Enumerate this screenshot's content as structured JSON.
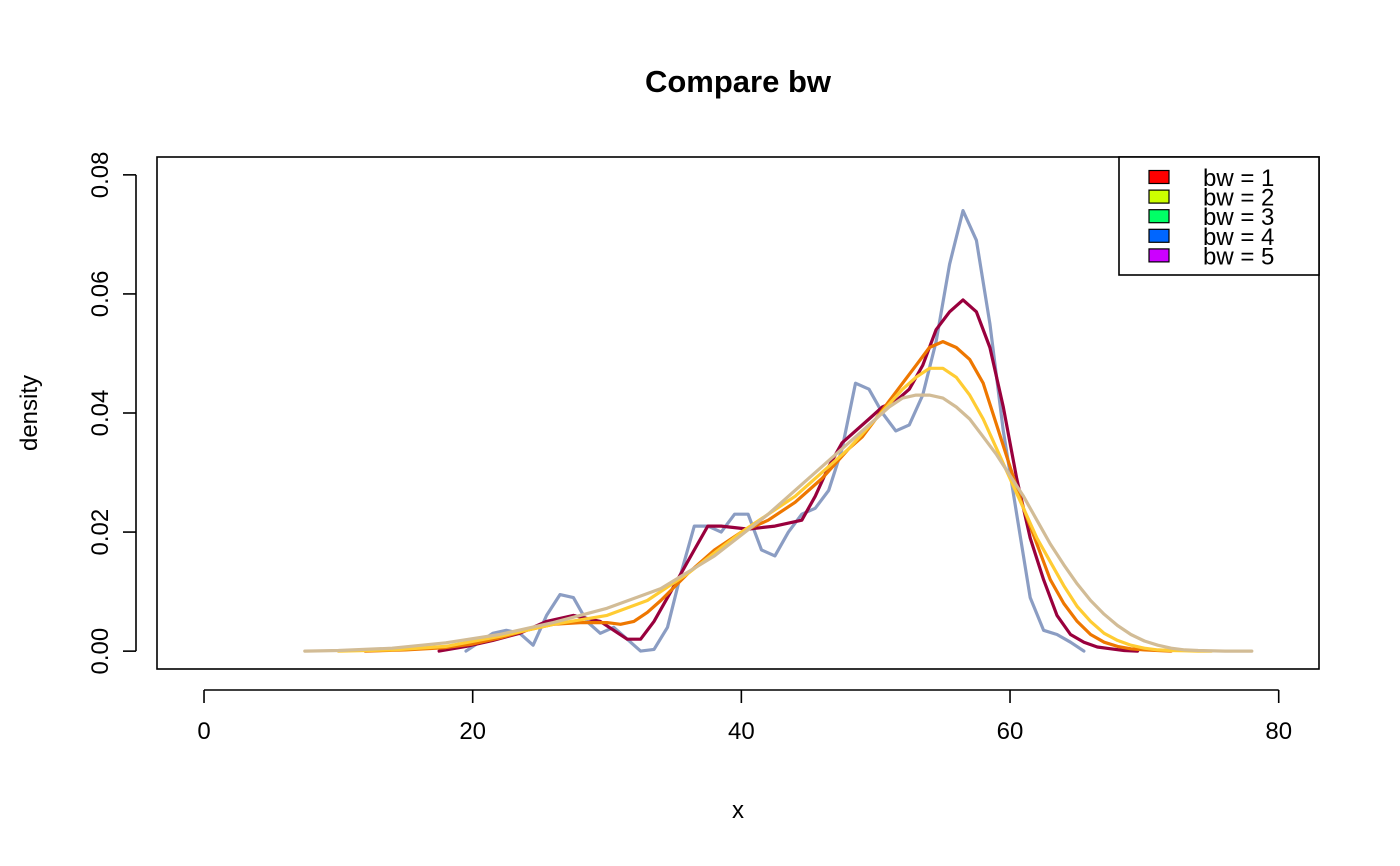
{
  "chart_data": {
    "type": "line",
    "title": "Compare bw",
    "xlabel": "x",
    "ylabel": "density",
    "xlim": [
      -3.5,
      83
    ],
    "ylim": [
      -0.003,
      0.083
    ],
    "x_ticks": [
      {
        "value": 0,
        "label": "0"
      },
      {
        "value": 20,
        "label": "20"
      },
      {
        "value": 40,
        "label": "40"
      },
      {
        "value": 60,
        "label": "60"
      },
      {
        "value": 80,
        "label": "80"
      }
    ],
    "y_ticks": [
      {
        "value": 0.0,
        "label": "0.00"
      },
      {
        "value": 0.02,
        "label": "0.02"
      },
      {
        "value": 0.04,
        "label": "0.04"
      },
      {
        "value": 0.06,
        "label": "0.06"
      },
      {
        "value": 0.08,
        "label": "0.08"
      }
    ],
    "grid": false,
    "legend": {
      "position": "top-right",
      "entries": [
        {
          "label": "bw = 1",
          "color": "#FF0000"
        },
        {
          "label": "bw = 2",
          "color": "#CCFF00"
        },
        {
          "label": "bw = 3",
          "color": "#00FF66"
        },
        {
          "label": "bw = 4",
          "color": "#0066FF"
        },
        {
          "label": "bw = 5",
          "color": "#CC00FF"
        }
      ]
    },
    "series": [
      {
        "color": "#8B9DC3",
        "x": [
          19.5,
          20.5,
          21.5,
          22.5,
          23.5,
          24.5,
          25.5,
          26.5,
          27.5,
          28.5,
          29.5,
          30.5,
          31.5,
          32.5,
          33.5,
          34.5,
          35.5,
          36.5,
          37.5,
          38.5,
          39.5,
          40.5,
          41.5,
          42.5,
          43.5,
          44.5,
          45.5,
          46.5,
          47.5,
          48.5,
          49.5,
          50.5,
          51.5,
          52.5,
          53.5,
          54.5,
          55.5,
          56.5,
          57.5,
          58.5,
          59.5,
          60.5,
          61.5,
          62.5,
          63.5,
          64.5,
          65.5
        ],
        "y": [
          0.0,
          0.0015,
          0.003,
          0.0035,
          0.003,
          0.001,
          0.006,
          0.0095,
          0.009,
          0.005,
          0.003,
          0.004,
          0.002,
          0.0,
          0.0003,
          0.004,
          0.013,
          0.021,
          0.021,
          0.02,
          0.023,
          0.023,
          0.017,
          0.016,
          0.02,
          0.023,
          0.024,
          0.027,
          0.034,
          0.045,
          0.044,
          0.04,
          0.037,
          0.038,
          0.043,
          0.052,
          0.065,
          0.074,
          0.069,
          0.055,
          0.037,
          0.023,
          0.009,
          0.0035,
          0.0028,
          0.0015,
          0.0
        ]
      },
      {
        "color": "#99003D",
        "x": [
          17.5,
          19.5,
          21.5,
          23.5,
          25.5,
          27.5,
          29.5,
          31.5,
          32.5,
          33.5,
          34.5,
          35.5,
          36.5,
          37.5,
          38.5,
          40.5,
          42.5,
          44.5,
          45.5,
          46.5,
          47.5,
          48.5,
          49.5,
          50.5,
          51.5,
          52.5,
          53.5,
          54.5,
          55.5,
          56.5,
          57.5,
          58.5,
          59.5,
          60.5,
          61.5,
          62.5,
          63.5,
          64.5,
          65.5,
          66.5,
          67.5,
          68.5,
          69.5
        ],
        "y": [
          0.0,
          0.0008,
          0.0018,
          0.003,
          0.005,
          0.006,
          0.005,
          0.002,
          0.002,
          0.005,
          0.009,
          0.013,
          0.017,
          0.021,
          0.021,
          0.0205,
          0.021,
          0.022,
          0.026,
          0.031,
          0.035,
          0.037,
          0.039,
          0.041,
          0.042,
          0.044,
          0.048,
          0.054,
          0.057,
          0.059,
          0.057,
          0.051,
          0.041,
          0.029,
          0.019,
          0.012,
          0.006,
          0.0028,
          0.0015,
          0.0007,
          0.0004,
          0.0001,
          0.0
        ]
      },
      {
        "color": "#EE7700",
        "x": [
          12,
          15,
          18,
          20,
          22,
          24,
          26,
          28,
          30,
          31,
          32,
          33,
          34,
          36,
          38,
          40,
          42,
          44,
          46,
          48,
          49,
          50,
          51,
          52,
          53,
          54,
          55,
          56,
          57,
          58,
          59,
          60,
          61,
          62,
          63,
          64,
          65,
          66,
          67,
          68,
          69,
          70,
          71,
          72
        ],
        "y": [
          0.0,
          0.0002,
          0.0006,
          0.0012,
          0.0022,
          0.0035,
          0.0045,
          0.0048,
          0.0048,
          0.0045,
          0.005,
          0.0065,
          0.0085,
          0.013,
          0.017,
          0.02,
          0.022,
          0.025,
          0.029,
          0.034,
          0.036,
          0.039,
          0.042,
          0.045,
          0.048,
          0.051,
          0.052,
          0.051,
          0.049,
          0.045,
          0.038,
          0.031,
          0.024,
          0.018,
          0.012,
          0.008,
          0.005,
          0.0028,
          0.0015,
          0.0008,
          0.0004,
          0.0002,
          0.0001,
          0.0
        ]
      },
      {
        "color": "#FFCC33",
        "x": [
          10,
          14,
          18,
          22,
          26,
          30,
          33,
          36,
          40,
          44,
          48,
          50,
          52,
          53,
          54,
          55,
          56,
          57,
          58,
          59,
          60,
          61,
          62,
          63,
          64,
          65,
          66,
          67,
          68,
          69,
          70,
          71,
          72,
          73,
          74,
          75
        ],
        "y": [
          0.0,
          0.0002,
          0.0008,
          0.0025,
          0.0045,
          0.006,
          0.0085,
          0.013,
          0.02,
          0.026,
          0.034,
          0.039,
          0.044,
          0.046,
          0.0475,
          0.0475,
          0.046,
          0.043,
          0.039,
          0.034,
          0.029,
          0.024,
          0.019,
          0.015,
          0.011,
          0.0075,
          0.005,
          0.003,
          0.0018,
          0.001,
          0.0005,
          0.0002,
          0.0001,
          5e-05,
          0.0,
          0.0
        ]
      },
      {
        "color": "#D2BC96",
        "x": [
          7.5,
          10,
          14,
          18,
          22,
          26,
          30,
          34,
          38,
          42,
          46,
          48,
          50,
          51,
          52,
          53,
          54,
          55,
          56,
          57,
          58,
          59,
          60,
          61,
          62,
          63,
          64,
          65,
          66,
          67,
          68,
          69,
          70,
          71,
          72,
          73,
          74,
          76,
          78
        ],
        "y": [
          0.0,
          0.0001,
          0.0005,
          0.0014,
          0.0028,
          0.0048,
          0.0072,
          0.0105,
          0.016,
          0.023,
          0.031,
          0.035,
          0.039,
          0.041,
          0.0425,
          0.043,
          0.043,
          0.0425,
          0.041,
          0.039,
          0.036,
          0.033,
          0.0295,
          0.026,
          0.022,
          0.018,
          0.0145,
          0.0113,
          0.0085,
          0.0062,
          0.0043,
          0.0028,
          0.0017,
          0.001,
          0.0005,
          0.0002,
          0.0001,
          0.0,
          0.0
        ]
      }
    ]
  }
}
